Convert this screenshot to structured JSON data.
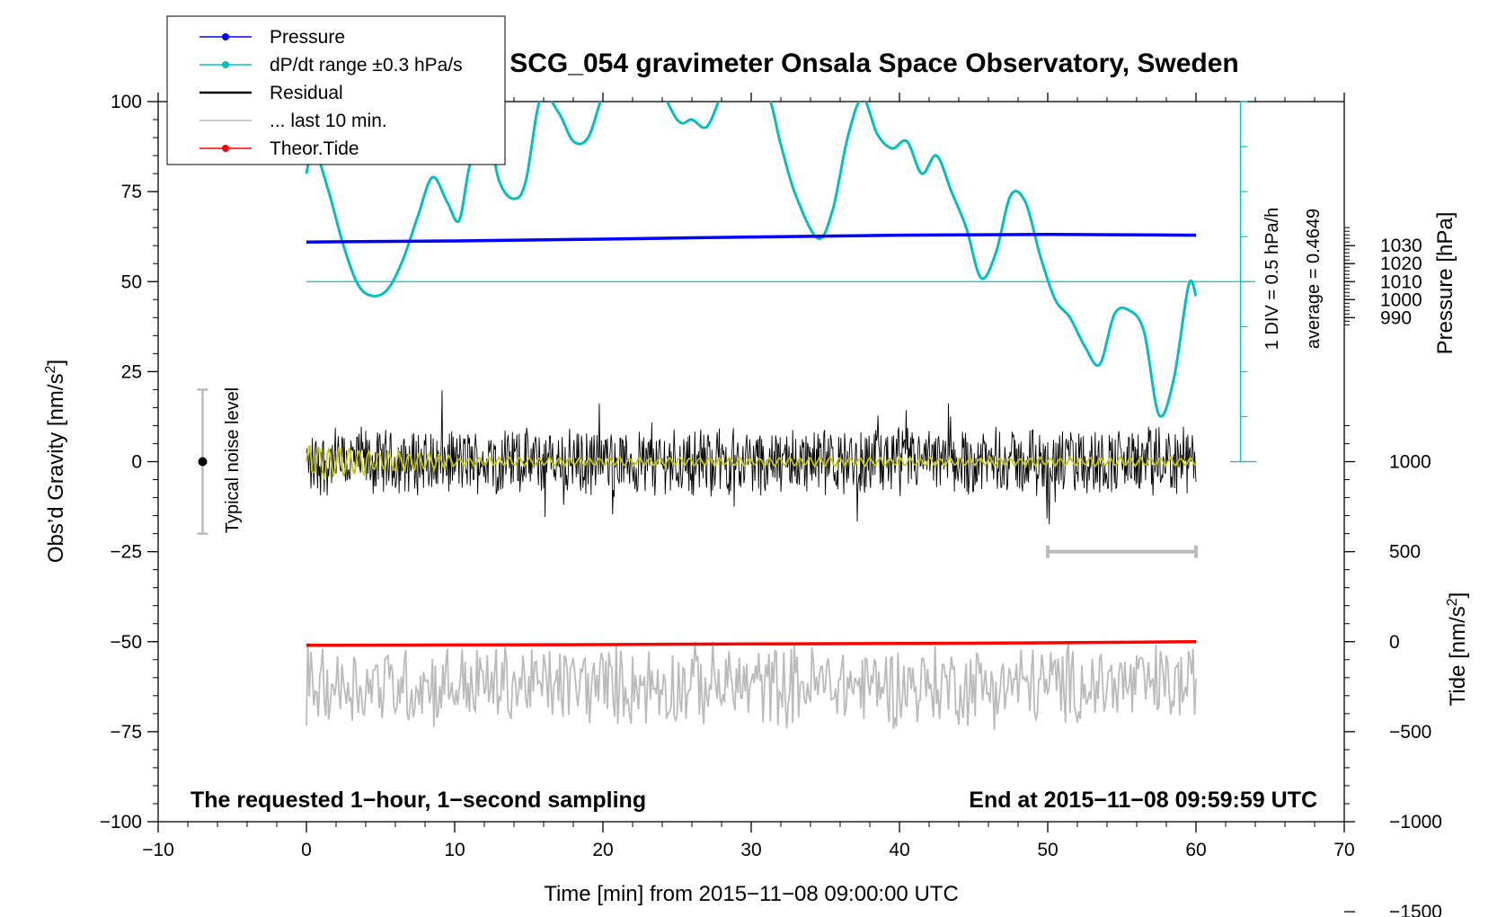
{
  "chart_data": {
    "type": "line",
    "title": "SCG_054 gravimeter Onsala Space Observatory, Sweden",
    "xlabel": "Time [min] from 2015−11−08 09:00:00 UTC",
    "ylabel_left": "Obs’d Gravity [nm/s",
    "ylabel_left_sup": "2",
    "ylabel_left_close": "]",
    "ylabel_right_pressure": "Pressure [hPa]",
    "ylabel_right_tide": "Tide [nm/s",
    "ylabel_right_tide_sup": "2",
    "ylabel_right_tide_close": "]",
    "xlim": [
      -10,
      70
    ],
    "ylim": [
      -100,
      100
    ],
    "x_ticks": [
      -10,
      0,
      10,
      20,
      30,
      40,
      50,
      60,
      70
    ],
    "x_tick_labels": [
      "−10",
      "0",
      "10",
      "20",
      "30",
      "40",
      "50",
      "60",
      "70"
    ],
    "y_ticks": [
      100,
      75,
      50,
      25,
      0,
      -25,
      -50,
      -75,
      -100
    ],
    "y_tick_labels": [
      "100",
      "75",
      "50",
      "25",
      "0",
      "−25",
      "−50",
      "−75",
      "−100"
    ],
    "pressure_axis": {
      "ticks": [
        1030,
        1020,
        1010,
        1000,
        990
      ],
      "labels": [
        "1030",
        "1020",
        "1010",
        "1000",
        "990"
      ],
      "gravity_at_1010": 50,
      "gravity_per_hpa": 0.5
    },
    "tide_axis": {
      "ticks": [
        1000,
        500,
        0,
        -500,
        -1000,
        -1500
      ],
      "labels": [
        "1000",
        "500",
        "0",
        "−500",
        "−1000",
        "−1500"
      ],
      "gravity_at_0": -50,
      "gravity_per_unit": 0.05
    },
    "legend": [
      {
        "label": "Pressure",
        "color": "#0000ff"
      },
      {
        "label": "dP/dt range ±0.3 hPa/s",
        "color": "#00c0c0"
      },
      {
        "label": "Residual",
        "color": "#000000"
      },
      {
        "label": "... last 10 min.",
        "color": "#bbbbbb"
      },
      {
        "label": "Theor.Tide",
        "color": "#ff0000"
      }
    ],
    "legend_position": "top-left",
    "annotation_left": "The requested 1−hour, 1−second sampling",
    "annotation_right": "End at 2015−11−08 09:59:59 UTC",
    "noise_label": "Typical noise level",
    "noise_bar": {
      "x": -7,
      "center": 0,
      "low": -20,
      "high": 20
    },
    "div_label": "1 DIV = 0.5 hPa/h",
    "average_label": "average = 0.4649",
    "last10_bar": {
      "x_start": 50,
      "x_end": 60,
      "y": -25
    },
    "dpdt_reference_level": 50,
    "series": [
      {
        "name": "Pressure",
        "color": "#0000ff",
        "x": [
          0,
          10,
          20,
          30,
          40,
          50,
          60
        ],
        "y": [
          61,
          61.3,
          61.8,
          62.4,
          62.9,
          63.1,
          62.9
        ]
      },
      {
        "name": "dP/dt range ±0.3 hPa/s",
        "color": "#00c0c0",
        "x": [
          0,
          0.5,
          1.5,
          2.5,
          3.5,
          4.5,
          5.5,
          6.5,
          7.5,
          8.5,
          9.5,
          10.3,
          11,
          12,
          13,
          14,
          14.8,
          15.8,
          17,
          18,
          19,
          20,
          21,
          22,
          23,
          25,
          26,
          27,
          28,
          29,
          31,
          32,
          33,
          34.5,
          35.5,
          36.5,
          37.5,
          38.5,
          39.5,
          40.5,
          41.5,
          42.5,
          43.5,
          44.5,
          45.5,
          46.5,
          47.5,
          48.5,
          49.5,
          50.5,
          51.5,
          52.5,
          53.5,
          54.5,
          55.5,
          56.5,
          57.5,
          58.5,
          59.5,
          60
        ],
        "y": [
          80,
          87,
          75,
          60,
          49,
          46,
          48,
          56,
          68,
          79,
          72,
          67,
          82,
          95,
          78,
          73,
          78,
          101,
          97,
          89,
          90,
          102,
          110,
          105,
          110,
          95,
          95,
          93,
          102,
          110,
          103,
          88,
          74,
          62,
          70,
          90,
          101,
          91,
          87,
          89,
          80,
          85,
          75,
          65,
          51,
          58,
          74,
          72,
          57,
          45,
          40,
          32,
          27,
          41,
          42,
          36,
          13,
          23,
          49,
          46
        ]
      },
      {
        "name": "Residual",
        "color": "#000000",
        "x": [
          0,
          60
        ],
        "y": [
          -22,
          28
        ]
      },
      {
        "name": "... last 10 min.",
        "color": "#bbbbbb",
        "x": [
          0,
          60
        ],
        "y": [
          -77,
          -47
        ]
      },
      {
        "name": "Theor.Tide",
        "color": "#ff0000",
        "x": [
          0,
          10,
          20,
          30,
          40,
          50,
          60
        ],
        "y": [
          -51,
          -50.9,
          -50.8,
          -50.6,
          -50.5,
          -50.3,
          -50
        ]
      }
    ]
  }
}
